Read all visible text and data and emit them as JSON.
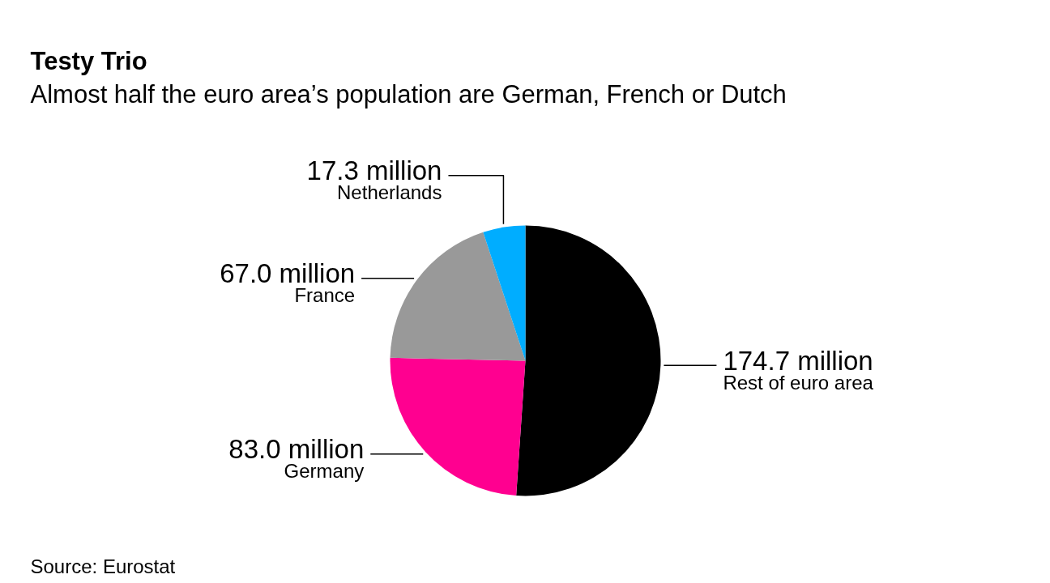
{
  "chart_data": {
    "type": "pie",
    "title": "Testy Trio",
    "subtitle": "Almost half the euro area’s population are German, French or Dutch",
    "categories": [
      "Rest of euro area",
      "Germany",
      "France",
      "Netherlands"
    ],
    "values": [
      174.7,
      83.0,
      67.0,
      17.3
    ],
    "colors": [
      "#000000",
      "#ff0090",
      "#999999",
      "#00adff"
    ],
    "value_labels": [
      "174.7 million",
      "83.0 million",
      "67.0 million",
      "17.3 million"
    ],
    "annotations": [
      "Source: Eurostat"
    ]
  }
}
